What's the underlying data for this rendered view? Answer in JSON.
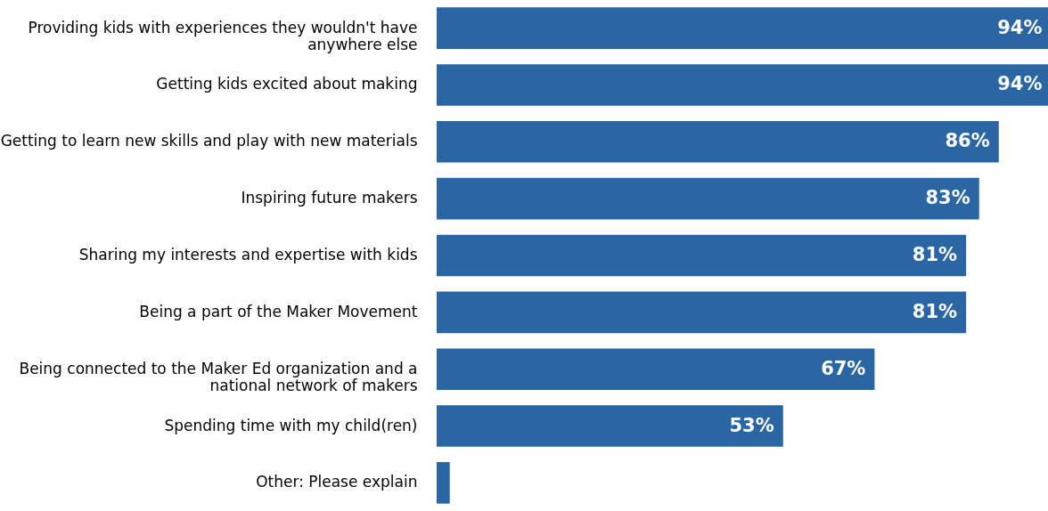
{
  "chart_data": {
    "type": "bar",
    "orientation": "horizontal",
    "categories": [
      "Providing kids with experiences they wouldn't have anywhere else",
      "Getting kids excited about making",
      "Getting to learn new skills and play with new materials",
      "Inspiring future makers",
      "Sharing my interests and expertise with kids",
      "Being a part of the Maker Movement",
      "Being connected to the Maker Ed organization and a national network of makers",
      "Spending time with my child(ren)",
      "Other: Please explain"
    ],
    "values": [
      94,
      94,
      86,
      83,
      81,
      81,
      67,
      53,
      2
    ],
    "value_labels": [
      "94%",
      "94%",
      "86%",
      "83%",
      "81%",
      "81%",
      "67%",
      "53%",
      null
    ],
    "color": "#2966a3",
    "grid": false
  }
}
